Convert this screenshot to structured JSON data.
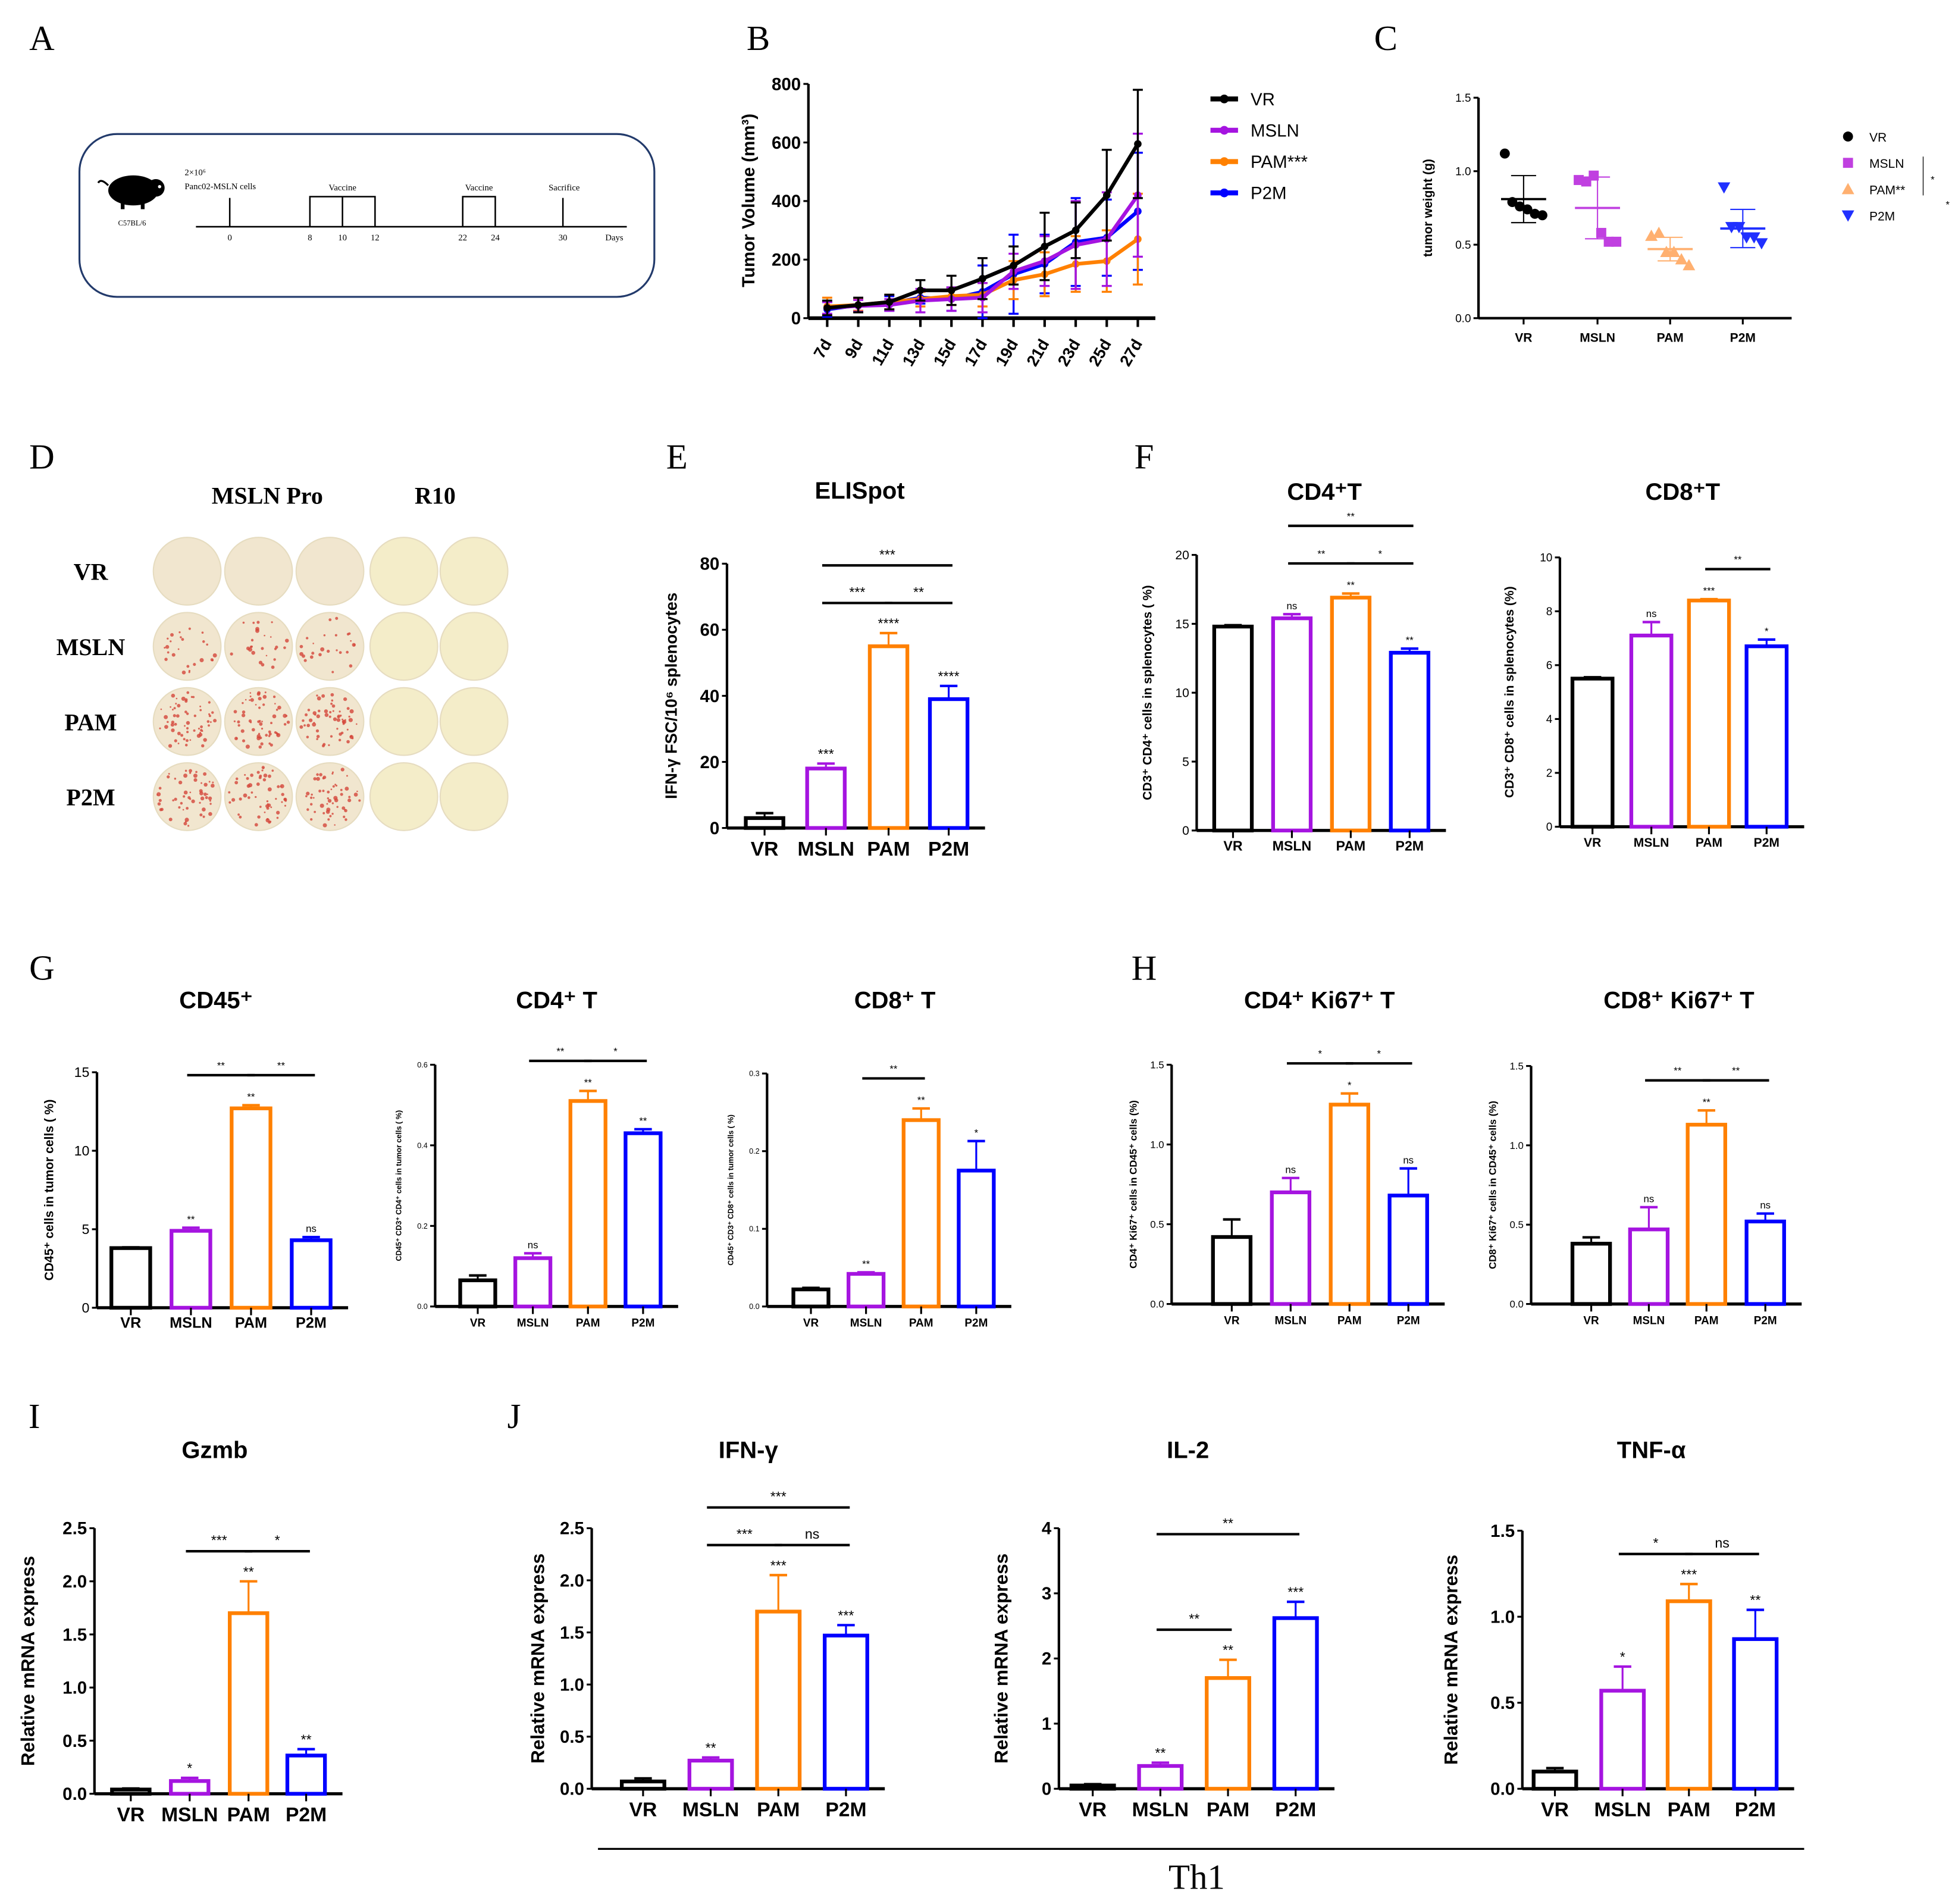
{
  "colors": {
    "VR": "#000000",
    "MSLN": "#a514e0",
    "PAM": "#ff8000",
    "P2M": "#0000ff"
  },
  "groups": [
    "VR",
    "MSLN",
    "PAM",
    "P2M"
  ],
  "panel_letters": [
    "A",
    "B",
    "C",
    "D",
    "E",
    "F",
    "G",
    "H",
    "I",
    "J"
  ],
  "panel_a": {
    "mouse_icon": "mouse-icon",
    "strain": "C57BL/6",
    "inoculum_line1": "2×10⁶",
    "inoculum_line2": "Panc02-MSLN cells",
    "vaccine_label_1": "Vaccine",
    "vaccine_label_2": "Vaccine",
    "sacrifice_label": "Sacrifice",
    "days": [
      "0",
      "8",
      "10",
      "12",
      "22",
      "24",
      "30"
    ],
    "days_unit": "Days"
  },
  "panel_d": {
    "col_header_1": "MSLN Pro",
    "col_header_2": "R10",
    "rows": [
      "VR",
      "MSLN",
      "PAM",
      "P2M"
    ]
  },
  "chart_data": [
    {
      "id": "B",
      "type": "line",
      "ylabel": "Tumor Volume (mm³)",
      "x": [
        "7d",
        "9d",
        "11d",
        "13d",
        "15d",
        "17d",
        "19d",
        "21d",
        "23d",
        "25d",
        "27d"
      ],
      "yticks": [
        "0",
        "200",
        "400",
        "600",
        "800"
      ],
      "ylim": [
        0,
        800
      ],
      "series": [
        {
          "name": "VR",
          "legend": "VR",
          "values": [
            35,
            45,
            55,
            95,
            95,
            135,
            180,
            245,
            300,
            420,
            595
          ],
          "err": [
            25,
            25,
            25,
            35,
            50,
            70,
            65,
            115,
            95,
            155,
            185
          ]
        },
        {
          "name": "MSLN",
          "legend": "MSLN",
          "values": [
            35,
            42,
            45,
            60,
            65,
            70,
            160,
            195,
            250,
            270,
            420
          ],
          "err": [
            20,
            20,
            20,
            40,
            40,
            50,
            60,
            85,
            150,
            160,
            210
          ]
        },
        {
          "name": "PAM",
          "legend": "PAM***",
          "values": [
            40,
            45,
            55,
            65,
            75,
            80,
            130,
            150,
            185,
            195,
            270
          ],
          "err": [
            30,
            20,
            25,
            25,
            30,
            40,
            65,
            75,
            95,
            105,
            155
          ]
        },
        {
          "name": "P2M",
          "legend": "P2M",
          "values": [
            30,
            45,
            50,
            70,
            65,
            90,
            150,
            185,
            260,
            275,
            365
          ],
          "err": [
            25,
            20,
            25,
            20,
            40,
            90,
            135,
            100,
            150,
            130,
            200
          ]
        }
      ]
    },
    {
      "id": "C",
      "type": "scatter",
      "ylabel": "tumor weight (g)",
      "categories": [
        "VR",
        "MSLN",
        "PAM",
        "P2M"
      ],
      "yticks": [
        "0.0",
        "0.5",
        "1.0",
        "1.5"
      ],
      "ylim": [
        0,
        1.5
      ],
      "legend": [
        "VR",
        "MSLN",
        "PAM**",
        "P2M"
      ],
      "legend_sig": [
        "*",
        "*"
      ],
      "points": [
        [
          1.12,
          0.79,
          0.76,
          0.74,
          0.71,
          0.7
        ],
        [
          0.94,
          0.93,
          0.97,
          0.58,
          0.52,
          0.52
        ],
        [
          0.56,
          0.58,
          0.45,
          0.45,
          0.4,
          0.36
        ],
        [
          0.89,
          0.62,
          0.62,
          0.55,
          0.55,
          0.51
        ]
      ],
      "mean": [
        0.81,
        0.75,
        0.47,
        0.61
      ],
      "sd": [
        0.16,
        0.21,
        0.08,
        0.13
      ],
      "markers": [
        "circle",
        "square",
        "triangle-up",
        "triangle-down"
      ]
    },
    {
      "id": "E",
      "type": "bar",
      "title": "ELISpot",
      "ylabel": "IFN-γ FSC/10⁶ splenocytes",
      "categories": [
        "VR",
        "MSLN",
        "PAM",
        "P2M"
      ],
      "yticks": [
        "0",
        "20",
        "40",
        "60",
        "80"
      ],
      "ylim": [
        0,
        80
      ],
      "values": [
        3,
        18,
        55,
        39
      ],
      "err": [
        1.5,
        1.5,
        4,
        4
      ],
      "sig": [
        "",
        "***",
        "****",
        "****"
      ],
      "brackets": [
        {
          "from": 1,
          "to": 2,
          "label": "***"
        },
        {
          "from": 2,
          "to": 3,
          "label": "**"
        },
        {
          "from": 1,
          "to": 3,
          "label": "***"
        }
      ]
    },
    {
      "id": "F1",
      "type": "bar",
      "title": "CD4⁺T",
      "ylabel": "CD3⁺ CD4⁺ cells in splenocytes ( %)",
      "categories": [
        "VR",
        "MSLN",
        "PAM",
        "P2M"
      ],
      "yticks": [
        "0",
        "5",
        "10",
        "15",
        "20"
      ],
      "ylim": [
        0,
        20
      ],
      "values": [
        14.8,
        15.4,
        16.9,
        12.9
      ],
      "err": [
        0.1,
        0.3,
        0.3,
        0.3
      ],
      "sig": [
        "",
        "ns",
        "**",
        "**"
      ],
      "brackets": [
        {
          "from": 1,
          "to": 2,
          "label": "**"
        },
        {
          "from": 2,
          "to": 3,
          "label": "*"
        },
        {
          "from": 1,
          "to": 3,
          "label": "**"
        }
      ]
    },
    {
      "id": "F2",
      "type": "bar",
      "title": "CD8⁺T",
      "ylabel": "CD3⁺ CD8⁺ cells  in splenocytes (%)",
      "categories": [
        "VR",
        "MSLN",
        "PAM",
        "P2M"
      ],
      "yticks": [
        "0",
        "2",
        "4",
        "6",
        "8",
        "10"
      ],
      "ylim": [
        0,
        10
      ],
      "values": [
        5.5,
        7.1,
        8.4,
        6.7
      ],
      "err": [
        0.05,
        0.5,
        0.05,
        0.25
      ],
      "sig": [
        "",
        "ns",
        "***",
        "*"
      ],
      "brackets": [
        {
          "from": 2,
          "to": 3,
          "label": "**"
        }
      ]
    },
    {
      "id": "G1",
      "type": "bar",
      "title": "CD45⁺",
      "ylabel": "CD45⁺ cells in tumor cells ( %)",
      "categories": [
        "VR",
        "MSLN",
        "PAM",
        "P2M"
      ],
      "yticks": [
        "0",
        "5",
        "10",
        "15"
      ],
      "ylim": [
        0,
        15
      ],
      "values": [
        3.8,
        4.9,
        12.7,
        4.3
      ],
      "err": [
        0.05,
        0.2,
        0.2,
        0.2
      ],
      "sig": [
        "",
        "**",
        "**",
        "ns"
      ],
      "brackets": [
        {
          "from": 1,
          "to": 2,
          "label": "**"
        },
        {
          "from": 2,
          "to": 3,
          "label": "**"
        }
      ]
    },
    {
      "id": "G2",
      "type": "bar",
      "title": "CD4⁺ T",
      "ylabel": "CD45⁺ CD3⁺ CD4⁺ cells in tumor cells ( %)",
      "categories": [
        "VR",
        "MSLN",
        "PAM",
        "P2M"
      ],
      "yticks": [
        "0.0",
        "0.2",
        "0.4",
        "0.6"
      ],
      "ylim": [
        0,
        0.6
      ],
      "values": [
        0.065,
        0.12,
        0.51,
        0.43
      ],
      "err": [
        0.012,
        0.012,
        0.025,
        0.01
      ],
      "sig": [
        "",
        "ns",
        "**",
        "**"
      ],
      "brackets": [
        {
          "from": 1,
          "to": 2,
          "label": "**"
        },
        {
          "from": 2,
          "to": 3,
          "label": "*"
        }
      ]
    },
    {
      "id": "G3",
      "type": "bar",
      "title": "CD8⁺ T",
      "ylabel": "CD45⁺ CD3⁺ CD8⁺ cells in tumor cells ( %)",
      "categories": [
        "VR",
        "MSLN",
        "PAM",
        "P2M"
      ],
      "yticks": [
        "0.0",
        "0.1",
        "0.2",
        "0.3"
      ],
      "ylim": [
        0,
        0.3
      ],
      "values": [
        0.022,
        0.042,
        0.24,
        0.175
      ],
      "err": [
        0.002,
        0.002,
        0.015,
        0.038
      ],
      "sig": [
        "",
        "**",
        "**",
        "*"
      ],
      "brackets": [
        {
          "from": 1,
          "to": 2,
          "label": "**"
        }
      ]
    },
    {
      "id": "H1",
      "type": "bar",
      "title": "CD4⁺ Ki67⁺ T",
      "ylabel": "CD4⁺ Ki67⁺ cells in CD45⁺ cells (%)",
      "categories": [
        "VR",
        "MSLN",
        "PAM",
        "P2M"
      ],
      "yticks": [
        "0.0",
        "0.5",
        "1.0",
        "1.5"
      ],
      "ylim": [
        0,
        1.5
      ],
      "values": [
        0.42,
        0.7,
        1.25,
        0.68
      ],
      "err": [
        0.11,
        0.09,
        0.07,
        0.17
      ],
      "sig": [
        "",
        "ns",
        "*",
        "ns"
      ],
      "brackets": [
        {
          "from": 1,
          "to": 2,
          "label": "*"
        },
        {
          "from": 2,
          "to": 3,
          "label": "*"
        }
      ]
    },
    {
      "id": "H2",
      "type": "bar",
      "title": "CD8⁺ Ki67⁺ T",
      "ylabel": "CD8⁺ Ki67⁺ cells in CD45⁺ cells (%)",
      "categories": [
        "VR",
        "MSLN",
        "PAM",
        "P2M"
      ],
      "yticks": [
        "0.0",
        "0.5",
        "1.0",
        "1.5"
      ],
      "ylim": [
        0,
        1.5
      ],
      "values": [
        0.38,
        0.47,
        1.13,
        0.52
      ],
      "err": [
        0.04,
        0.14,
        0.09,
        0.05
      ],
      "sig": [
        "",
        "ns",
        "**",
        "ns"
      ],
      "brackets": [
        {
          "from": 1,
          "to": 2,
          "label": "**"
        },
        {
          "from": 2,
          "to": 3,
          "label": "**"
        }
      ]
    },
    {
      "id": "I",
      "type": "bar",
      "title": "Gzmb",
      "ylabel": "Relative mRNA express",
      "categories": [
        "VR",
        "MSLN",
        "PAM",
        "P2M"
      ],
      "yticks": [
        "0.0",
        "0.5",
        "1.0",
        "1.5",
        "2.0",
        "2.5"
      ],
      "ylim": [
        0,
        2.5
      ],
      "values": [
        0.04,
        0.12,
        1.7,
        0.36
      ],
      "err": [
        0.01,
        0.03,
        0.3,
        0.06
      ],
      "sig": [
        "",
        "*",
        "**",
        "**"
      ],
      "brackets": [
        {
          "from": 1,
          "to": 2,
          "label": "***"
        },
        {
          "from": 2,
          "to": 3,
          "label": "*"
        }
      ]
    },
    {
      "id": "J1",
      "type": "bar",
      "title": "IFN-γ",
      "ylabel": "Relative mRNA express",
      "categories": [
        "VR",
        "MSLN",
        "PAM",
        "P2M"
      ],
      "yticks": [
        "0.0",
        "0.5",
        "1.0",
        "1.5",
        "2.0",
        "2.5"
      ],
      "ylim": [
        0,
        2.5
      ],
      "values": [
        0.07,
        0.27,
        1.7,
        1.47
      ],
      "err": [
        0.03,
        0.03,
        0.35,
        0.1
      ],
      "sig": [
        "",
        "**",
        "***",
        "***"
      ],
      "brackets": [
        {
          "from": 1,
          "to": 2,
          "label": "***"
        },
        {
          "from": 2,
          "to": 3,
          "label": "ns"
        },
        {
          "from": 1,
          "to": 3,
          "label": "***"
        }
      ]
    },
    {
      "id": "J2",
      "type": "bar",
      "title": "IL-2",
      "ylabel": "Relative mRNA express",
      "categories": [
        "VR",
        "MSLN",
        "PAM",
        "P2M"
      ],
      "yticks": [
        "0",
        "1",
        "2",
        "3",
        "4"
      ],
      "ylim": [
        0,
        4
      ],
      "values": [
        0.05,
        0.35,
        1.7,
        2.62
      ],
      "err": [
        0.02,
        0.05,
        0.28,
        0.25
      ],
      "sig": [
        "",
        "**",
        "**",
        "***"
      ],
      "brackets": [
        {
          "from": 1,
          "to": 2,
          "label": "**"
        },
        {
          "from": 1,
          "to": 3,
          "label": "**"
        }
      ]
    },
    {
      "id": "J3",
      "type": "bar",
      "title": "TNF-α",
      "ylabel": "Relative mRNA express",
      "categories": [
        "VR",
        "MSLN",
        "PAM",
        "P2M"
      ],
      "yticks": [
        "0.0",
        "0.5",
        "1.0",
        "1.5"
      ],
      "ylim": [
        0,
        1.5
      ],
      "values": [
        0.1,
        0.57,
        1.09,
        0.87
      ],
      "err": [
        0.02,
        0.14,
        0.1,
        0.17
      ],
      "sig": [
        "",
        "*",
        "***",
        "**"
      ],
      "brackets": [
        {
          "from": 1,
          "to": 2,
          "label": "*"
        },
        {
          "from": 2,
          "to": 3,
          "label": "ns"
        }
      ]
    }
  ],
  "th1_label": "Th1"
}
